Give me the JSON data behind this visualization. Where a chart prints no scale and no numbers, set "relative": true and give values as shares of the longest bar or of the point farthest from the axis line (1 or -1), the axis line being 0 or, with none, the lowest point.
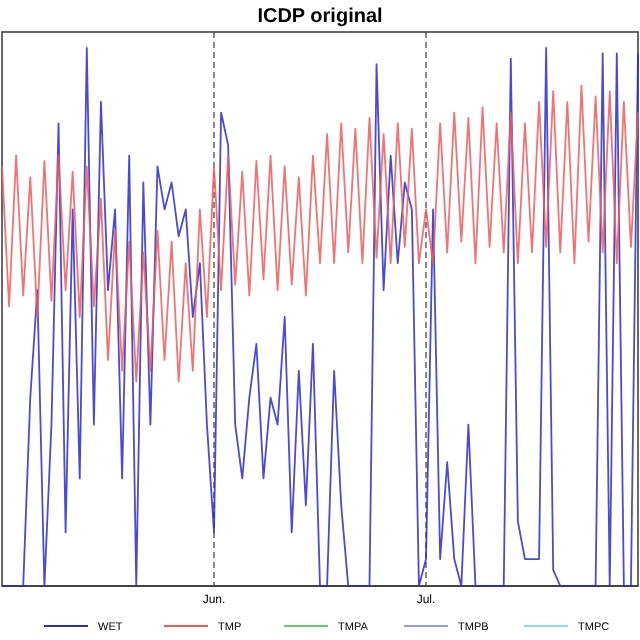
{
  "chart_data": {
    "type": "line",
    "title": "ICDP original",
    "relative": true,
    "grid": "x",
    "legend": "bottom",
    "line_style": "solid",
    "marker": "none",
    "x": [
      "--05-02",
      "--05-03",
      "--05-04",
      "--05-05",
      "--05-06",
      "--05-07",
      "--05-08",
      "--05-09",
      "--05-10",
      "--05-11",
      "--05-12",
      "--05-13",
      "--05-14",
      "--05-15",
      "--05-16",
      "--05-17",
      "--05-18",
      "--05-19",
      "--05-20",
      "--05-21",
      "--05-22",
      "--05-23",
      "--05-24",
      "--05-25",
      "--05-26",
      "--05-27",
      "--05-28",
      "--05-29",
      "--05-30",
      "--05-31",
      "--06-01",
      "--06-02",
      "--06-03",
      "--06-04",
      "--06-05",
      "--06-06",
      "--06-07",
      "--06-08",
      "--06-09",
      "--06-10",
      "--06-11",
      "--06-12",
      "--06-13",
      "--06-14",
      "--06-15",
      "--06-16",
      "--06-17",
      "--06-18",
      "--06-19",
      "--06-20",
      "--06-21",
      "--06-22",
      "--06-23",
      "--06-24",
      "--06-25",
      "--06-26",
      "--06-27",
      "--06-28",
      "--06-29",
      "--06-30",
      "--07-01",
      "--07-02",
      "--07-03",
      "--07-04",
      "--07-05",
      "--07-06",
      "--07-07",
      "--07-08",
      "--07-09",
      "--07-10",
      "--07-11",
      "--07-12",
      "--07-13",
      "--07-14",
      "--07-15",
      "--07-16",
      "--07-17",
      "--07-18",
      "--07-19",
      "--07-20",
      "--07-21",
      "--07-22",
      "--07-23",
      "--07-24",
      "--07-25",
      "--07-26",
      "--07-27",
      "--07-28",
      "--07-29",
      "--07-30",
      "--07-31"
    ],
    "xlim": [
      "--05-02",
      "--07-31"
    ],
    "xticks": [
      {
        "value": "--06-01",
        "label": "Jun."
      },
      {
        "value": "--07-01",
        "label": "Jul."
      }
    ],
    "series": [
      {
        "name": "WET",
        "color": "#2a2ad0",
        "values": [
          0,
          0,
          0,
          0,
          0.35,
          0.55,
          0,
          0.3,
          0.86,
          0.1,
          0.7,
          0.2,
          1,
          0.3,
          0.9,
          0.55,
          0.7,
          0.2,
          0.8,
          0,
          0.75,
          0.3,
          0.78,
          0.7,
          0.75,
          0.65,
          0.7,
          0.5,
          0.6,
          0.3,
          0.1,
          0.88,
          0.82,
          0.3,
          0.2,
          0.35,
          0.45,
          0.2,
          0.35,
          0.3,
          0.5,
          0.1,
          0.4,
          0.15,
          0.45,
          0,
          0,
          0.4,
          0.15,
          0,
          0,
          0,
          0,
          0.97,
          0.55,
          0.8,
          0.6,
          0.75,
          0.7,
          0,
          0.05,
          0.7,
          0.05,
          0.23,
          0.05,
          0,
          0.3,
          0,
          0,
          0,
          0,
          0,
          0.98,
          0.12,
          0.05,
          0.05,
          0.05,
          1,
          0.03,
          0,
          0,
          0,
          0,
          0,
          0,
          0.99,
          0,
          0.99,
          0,
          0,
          0.99
        ]
      },
      {
        "name": "TMP",
        "color": "#ee5a5a",
        "values": [
          0.78,
          0.52,
          0.8,
          0.54,
          0.76,
          0.5,
          0.79,
          0.53,
          0.8,
          0.55,
          0.77,
          0.5,
          0.78,
          0.52,
          0.72,
          0.42,
          0.66,
          0.4,
          0.64,
          0.38,
          0.62,
          0.4,
          0.66,
          0.42,
          0.64,
          0.38,
          0.6,
          0.4,
          0.7,
          0.5,
          0.78,
          0.55,
          0.8,
          0.56,
          0.77,
          0.54,
          0.79,
          0.57,
          0.8,
          0.55,
          0.78,
          0.56,
          0.76,
          0.54,
          0.8,
          0.6,
          0.84,
          0.6,
          0.86,
          0.62,
          0.85,
          0.6,
          0.87,
          0.61,
          0.84,
          0.6,
          0.86,
          0.63,
          0.85,
          0.6,
          0.7,
          0.6,
          0.86,
          0.62,
          0.88,
          0.64,
          0.87,
          0.6,
          0.89,
          0.63,
          0.86,
          0.62,
          0.88,
          0.6,
          0.86,
          0.62,
          0.9,
          0.63,
          0.92,
          0.62,
          0.9,
          0.6,
          0.93,
          0.64,
          0.91,
          0.62,
          0.92,
          0.6,
          0.9,
          0.63,
          0.88
        ]
      },
      {
        "name": "TMPA",
        "color": "#66cc66",
        "values": [
          null,
          null,
          null,
          null,
          null,
          null,
          null,
          null,
          null,
          null,
          null,
          null,
          null,
          null,
          null,
          null,
          null,
          null,
          null,
          null,
          null,
          null,
          null,
          null,
          null,
          null,
          null,
          null,
          null,
          null,
          null,
          null,
          null,
          null,
          null,
          null,
          null,
          null,
          null,
          null,
          null,
          null,
          null,
          null,
          null,
          null,
          null,
          null,
          null,
          null,
          null,
          null,
          null,
          null,
          null,
          null,
          null,
          null,
          null,
          null,
          null,
          null,
          null,
          null,
          null,
          null,
          null,
          null,
          null,
          null,
          null,
          null,
          null,
          null,
          null,
          null,
          null,
          null,
          null,
          null,
          null,
          null,
          null,
          null,
          null,
          null,
          null,
          null,
          null,
          null,
          null
        ]
      },
      {
        "name": "TMPB",
        "color": "#9999ee",
        "values": [
          null,
          null,
          null,
          null,
          null,
          null,
          null,
          null,
          null,
          null,
          null,
          null,
          null,
          null,
          null,
          null,
          null,
          null,
          null,
          null,
          null,
          null,
          null,
          null,
          null,
          null,
          null,
          null,
          null,
          null,
          null,
          null,
          null,
          null,
          null,
          null,
          null,
          null,
          null,
          null,
          null,
          null,
          null,
          null,
          null,
          null,
          null,
          null,
          null,
          null,
          null,
          null,
          null,
          null,
          null,
          null,
          null,
          null,
          null,
          null,
          null,
          null,
          null,
          null,
          null,
          null,
          null,
          null,
          null,
          null,
          null,
          null,
          null,
          null,
          null,
          null,
          null,
          null,
          null,
          null,
          null,
          null,
          null,
          null,
          null,
          null,
          null,
          null,
          null,
          null,
          null
        ]
      },
      {
        "name": "TMPC",
        "color": "#88dddd",
        "values": [
          null,
          null,
          null,
          null,
          null,
          null,
          null,
          null,
          null,
          null,
          null,
          null,
          null,
          null,
          null,
          null,
          null,
          null,
          null,
          null,
          null,
          null,
          null,
          null,
          null,
          null,
          null,
          null,
          null,
          null,
          null,
          null,
          null,
          null,
          null,
          null,
          null,
          null,
          null,
          null,
          null,
          null,
          null,
          null,
          null,
          null,
          null,
          null,
          null,
          null,
          null,
          null,
          null,
          null,
          null,
          null,
          null,
          null,
          null,
          null,
          null,
          null,
          null,
          null,
          null,
          null,
          null,
          null,
          null,
          null,
          null,
          null,
          null,
          null,
          null,
          null,
          null,
          null,
          null,
          null,
          null,
          null,
          null,
          null,
          null,
          null,
          null,
          null,
          null,
          null,
          null
        ]
      }
    ]
  }
}
